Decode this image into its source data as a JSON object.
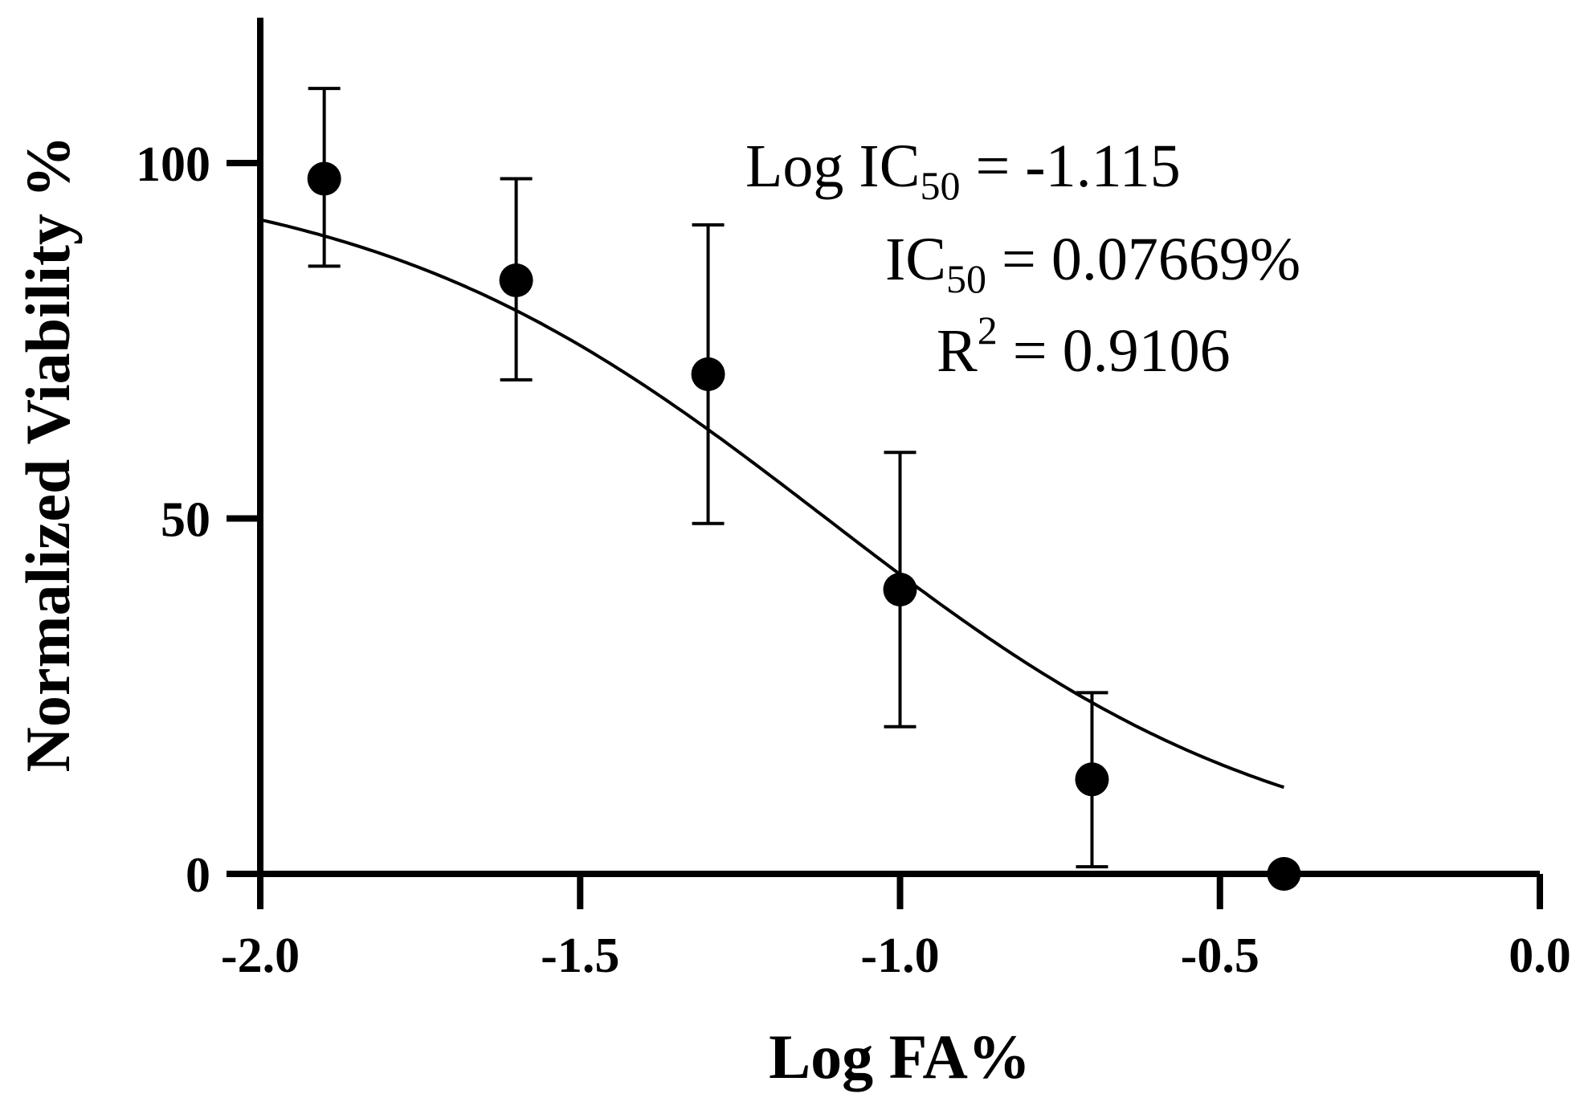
{
  "chart_data": {
    "type": "scatter",
    "title": "",
    "xlabel": "Log FA%",
    "ylabel": "Normalized Viability %",
    "xlim": [
      -2.0,
      0.0
    ],
    "ylim": [
      0,
      120
    ],
    "x_ticks": [
      -2.0,
      -1.5,
      -1.0,
      -0.5,
      0.0
    ],
    "x_tick_labels": [
      "-2.0",
      "-1.5",
      "-1.0",
      "-0.5",
      "0.0"
    ],
    "y_ticks": [
      0,
      50,
      100
    ],
    "y_tick_labels": [
      "0",
      "50",
      "100"
    ],
    "grid": false,
    "legend": "none",
    "series": [
      {
        "points": [
          {
            "x": -1.9,
            "y": 97.8,
            "err_low": 85.5,
            "err_high": 110.5
          },
          {
            "x": -1.6,
            "y": 83.5,
            "err_low": 69.5,
            "err_high": 97.8
          },
          {
            "x": -1.3,
            "y": 70.3,
            "err_low": 49.3,
            "err_high": 91.3
          },
          {
            "x": -1.0,
            "y": 40.0,
            "err_low": 20.7,
            "err_high": 59.3
          },
          {
            "x": -0.7,
            "y": 13.3,
            "err_low": 1.0,
            "err_high": 25.5
          },
          {
            "x": -0.4,
            "y": 0.0
          }
        ]
      }
    ],
    "fit": {
      "model": "sigmoid",
      "top": 100,
      "bottom": 0,
      "log_ic50": -1.115,
      "hill_slope": -1.2,
      "x_range": [
        -2.0,
        -0.4
      ]
    },
    "annotations": {
      "line1_main": "Log IC",
      "line1_sub": "50",
      "line1_rest": " = -1.115",
      "line2_main": "IC",
      "line2_sub": "50",
      "line2_rest": " = 0.07669%",
      "line3_main": "R",
      "line3_sup": "2",
      "line3_rest": " = 0.9106"
    },
    "colors": {
      "marker": "#000000",
      "curve": "#000000",
      "axes": "#000000"
    }
  }
}
